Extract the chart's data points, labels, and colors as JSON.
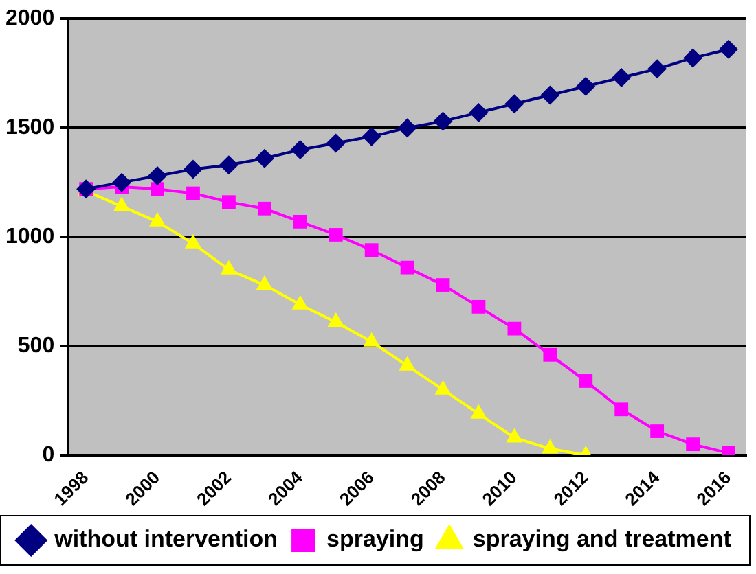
{
  "chart_data": {
    "type": "line",
    "categories": [
      "1998",
      null,
      "2000",
      null,
      "2002",
      null,
      "2004",
      null,
      "2006",
      null,
      "2008",
      null,
      "2010",
      null,
      "2012",
      null,
      "2014",
      null,
      "2016"
    ],
    "series": [
      {
        "name": "without intervention",
        "color": "#000080",
        "marker": "diamond",
        "values": [
          1220,
          1250,
          1280,
          1310,
          1330,
          1360,
          1400,
          1430,
          1460,
          1500,
          1530,
          1570,
          1610,
          1650,
          1690,
          1730,
          1770,
          1820,
          1860
        ]
      },
      {
        "name": "spraying",
        "color": "#ff00ff",
        "marker": "square",
        "values": [
          1220,
          1230,
          1220,
          1200,
          1160,
          1130,
          1070,
          1010,
          940,
          860,
          780,
          680,
          580,
          460,
          340,
          210,
          110,
          50,
          10
        ]
      },
      {
        "name": "spraying and treatment",
        "color": "#ffff00",
        "marker": "triangle",
        "values": [
          1210,
          1140,
          1070,
          970,
          850,
          780,
          690,
          610,
          520,
          410,
          300,
          190,
          80,
          30,
          0,
          null,
          null,
          null,
          null
        ]
      }
    ],
    "ylim": [
      0,
      2000
    ],
    "yticks": [
      0,
      500,
      1000,
      1500,
      2000
    ],
    "grid": "y",
    "legend": "bottom",
    "line_style": "solid"
  }
}
